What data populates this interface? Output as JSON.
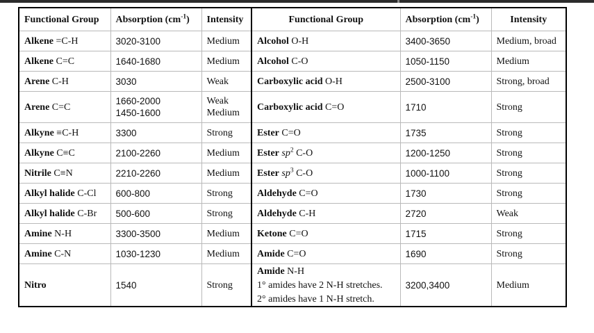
{
  "header": {
    "group": "Functional Group",
    "absorption": "Absorption (cm",
    "absorption_exp": "-1",
    "absorption_close": ")",
    "intensity": "Intensity"
  },
  "rows": [
    {
      "l": {
        "gb": "Alkene",
        "gt": " =C-H",
        "abs": [
          "3020-3100"
        ],
        "int": [
          "Medium"
        ]
      },
      "r": {
        "gb": "Alcohol",
        "gt": " O-H",
        "abs": [
          "3400-3650"
        ],
        "int": [
          "Medium, broad"
        ]
      }
    },
    {
      "l": {
        "gb": "Alkene",
        "gt": " C=C",
        "abs": [
          "1640-1680"
        ],
        "int": [
          "Medium"
        ]
      },
      "r": {
        "gb": "Alcohol",
        "gt": " C-O",
        "abs": [
          "1050-1150"
        ],
        "int": [
          "Medium"
        ]
      }
    },
    {
      "l": {
        "gb": "Arene",
        "gt": " C-H",
        "abs": [
          "3030"
        ],
        "int": [
          "Weak"
        ]
      },
      "r": {
        "gb": "Carboxylic acid",
        "gt": " O-H",
        "abs": [
          "2500-3100"
        ],
        "int": [
          "Strong, broad"
        ]
      }
    },
    {
      "l": {
        "gb": "Arene",
        "gt": " C=C",
        "abs": [
          "1660-2000",
          "1450-1600"
        ],
        "int": [
          "Weak",
          "Medium"
        ]
      },
      "r": {
        "gb": "Carboxylic acid",
        "gt": " C=O",
        "abs": [
          "1710"
        ],
        "int": [
          "Strong"
        ]
      }
    },
    {
      "l": {
        "gb": "Alkyne",
        "gt": " ≡C-H",
        "abs": [
          "3300"
        ],
        "int": [
          "Strong"
        ]
      },
      "r": {
        "gb": "Ester",
        "gt": " C=O",
        "abs": [
          "1735"
        ],
        "int": [
          "Strong"
        ]
      }
    },
    {
      "l": {
        "gb": "Alkyne",
        "gt": " C≡C",
        "abs": [
          "2100-2260"
        ],
        "int": [
          "Medium"
        ]
      },
      "r": {
        "gb": "Ester",
        "gi": "sp",
        "gsup": "2",
        "gt": " C-O",
        "abs": [
          "1200-1250"
        ],
        "int": [
          "Strong"
        ]
      }
    },
    {
      "l": {
        "gb": "Nitrile",
        "gt": " C≡N",
        "abs": [
          "2210-2260"
        ],
        "int": [
          "Medium"
        ]
      },
      "r": {
        "gb": "Ester",
        "gi": "sp",
        "gsup": "3",
        "gt": " C-O",
        "abs": [
          "1000-1100"
        ],
        "int": [
          "Strong"
        ]
      }
    },
    {
      "l": {
        "gb": "Alkyl halide",
        "gt": " C-Cl",
        "abs": [
          "600-800"
        ],
        "int": [
          "Strong"
        ]
      },
      "r": {
        "gb": "Aldehyde",
        "gt": " C=O",
        "abs": [
          "1730"
        ],
        "int": [
          "Strong"
        ]
      }
    },
    {
      "l": {
        "gb": "Alkyl halide",
        "gt": " C-Br",
        "abs": [
          "500-600"
        ],
        "int": [
          "Strong"
        ]
      },
      "r": {
        "gb": "Aldehyde",
        "gt": " C-H",
        "abs": [
          "2720"
        ],
        "int": [
          "Weak"
        ]
      }
    },
    {
      "l": {
        "gb": "Amine",
        "gt": " N-H",
        "abs": [
          "3300-3500"
        ],
        "int": [
          "Medium"
        ]
      },
      "r": {
        "gb": "Ketone",
        "gt": " C=O",
        "abs": [
          "1715"
        ],
        "int": [
          "Strong"
        ]
      }
    },
    {
      "l": {
        "gb": "Amine",
        "gt": " C-N",
        "abs": [
          "1030-1230"
        ],
        "int": [
          "Medium"
        ]
      },
      "r": {
        "gb": "Amide",
        "gt": " C=O",
        "abs": [
          "1690"
        ],
        "int": [
          "Strong"
        ]
      }
    },
    {
      "l": {
        "gb": "Nitro",
        "gt": "",
        "abs": [
          "1540"
        ],
        "int": [
          "Strong"
        ]
      },
      "r": {
        "gb": "Amide",
        "gt": " N-H",
        "extra": [
          "1° amides have 2 N-H stretches.",
          "2° amides have 1 N-H stretch."
        ],
        "abs": [
          "3200,3400"
        ],
        "int": [
          "Medium"
        ]
      }
    }
  ]
}
